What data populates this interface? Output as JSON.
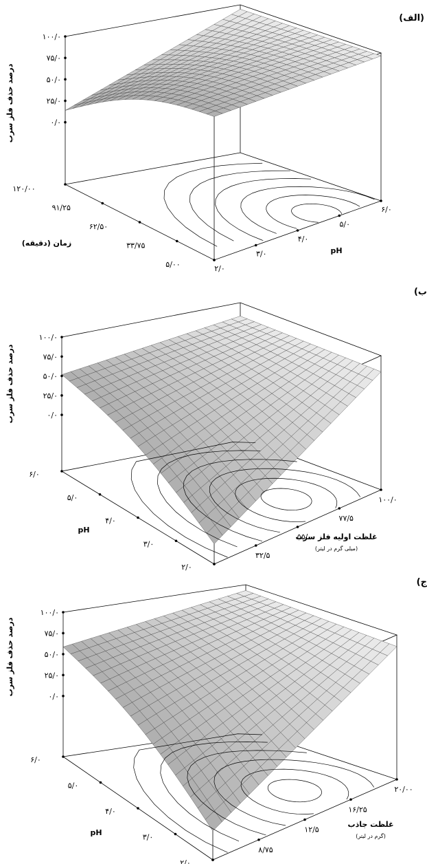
{
  "chart_data": [
    {
      "type": "surface",
      "panel_label": "(الف)",
      "zlabel": "درصد حذف فلز سرب",
      "xlabel": "pH",
      "ylabel": "زمان (دقیقه)",
      "ylabel_sub": "",
      "z_ticks": [
        "۰/۰",
        "۲۵/۰",
        "۵۰/۰",
        "۷۵/۰",
        "۱۰۰/۰"
      ],
      "x_ticks": [
        "۲/۰",
        "۳/۰",
        "۴/۰",
        "۵/۰",
        "۶/۰"
      ],
      "y_ticks": [
        "۵/۰۰",
        "۳۳/۷۵",
        "۶۲/۵۰",
        "۹۱/۲۵",
        "۱۲۰/۰۰"
      ],
      "zlim": [
        0,
        100
      ],
      "xlim": [
        2,
        6
      ],
      "ylim": [
        5,
        120
      ],
      "z_values": {
        "front_left": 50,
        "front_right": 97,
        "back_left": 97,
        "back_right": 98
      },
      "contour": true
    },
    {
      "type": "surface",
      "panel_label": "(ب",
      "zlabel": "درصد حذف فلز سرب",
      "xlabel": "pH",
      "ylabel": "غلظت اولیه فلز سرب",
      "ylabel_sub": "(میلی گرم در لیتر)",
      "z_ticks": [
        "۰/۰",
        "۲۵/۰",
        "۵۰/۰",
        "۷۵/۰",
        "۱۰۰/۰"
      ],
      "x_ticks": [
        "۲/۰",
        "۳/۰",
        "۴/۰",
        "۵/۰",
        "۶/۰"
      ],
      "y_ticks": [
        "۱۰/۰",
        "۳۲/۵",
        "۵۵/۰",
        "۷۷/۵",
        "۱۰۰/۰"
      ],
      "zlim": [
        0,
        100
      ],
      "xlim": [
        2,
        6
      ],
      "ylim": [
        10,
        100
      ],
      "z_values": {
        "front_left": 72,
        "front_right": 15,
        "back_left": 90,
        "back_right": 88
      },
      "contour": true
    },
    {
      "type": "surface",
      "panel_label": "(ج",
      "zlabel": "درصد حذف فلز سرب",
      "xlabel": "pH",
      "ylabel": "غلظت جاذب",
      "ylabel_sub": "(گرم در لیتر)",
      "z_ticks": [
        "۰/۰",
        "۲۵/۰",
        "۵۰/۰",
        "۷۵/۰",
        "۱۰۰/۰"
      ],
      "x_ticks": [
        "۲/۰",
        "۳/۰",
        "۴/۰",
        "۵/۰",
        "۶/۰"
      ],
      "y_ticks": [
        "۵/۰۰",
        "۸/۷۵",
        "۱۲/۵",
        "۱۶/۲۵",
        "۲۰/۰۰"
      ],
      "zlim": [
        0,
        100
      ],
      "xlim": [
        2,
        6
      ],
      "ylim": [
        5,
        20
      ],
      "z_values": {
        "front_left": 76,
        "front_right": 20,
        "back_left": 96,
        "back_right": 92
      },
      "contour": true
    }
  ]
}
